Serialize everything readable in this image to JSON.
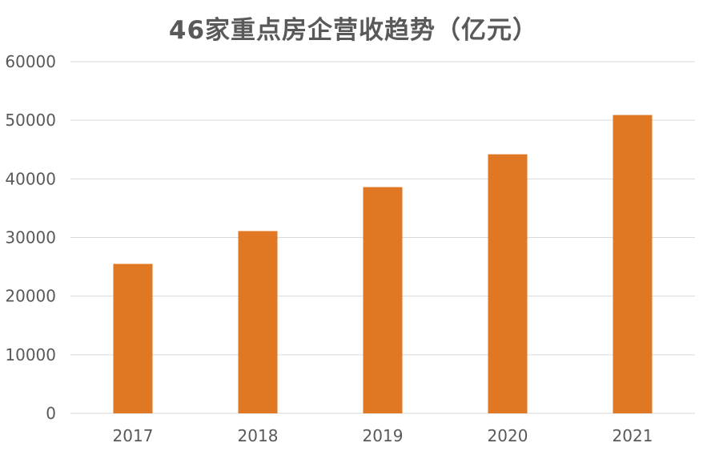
{
  "chart_data": {
    "type": "bar",
    "title": "46家重点房企营收趋势（亿元）",
    "categories": [
      "2017",
      "2018",
      "2019",
      "2020",
      "2021"
    ],
    "series": [
      {
        "values": [
          25500,
          31100,
          38600,
          44200,
          50900
        ]
      }
    ],
    "xlabel": "",
    "ylabel": "",
    "ylim": [
      0,
      60000
    ],
    "yticks": [
      0,
      10000,
      20000,
      30000,
      40000,
      50000,
      60000
    ],
    "grid": true,
    "legend": "none",
    "bar_color": "#E07722",
    "grid_color": "#D9D9D9"
  }
}
